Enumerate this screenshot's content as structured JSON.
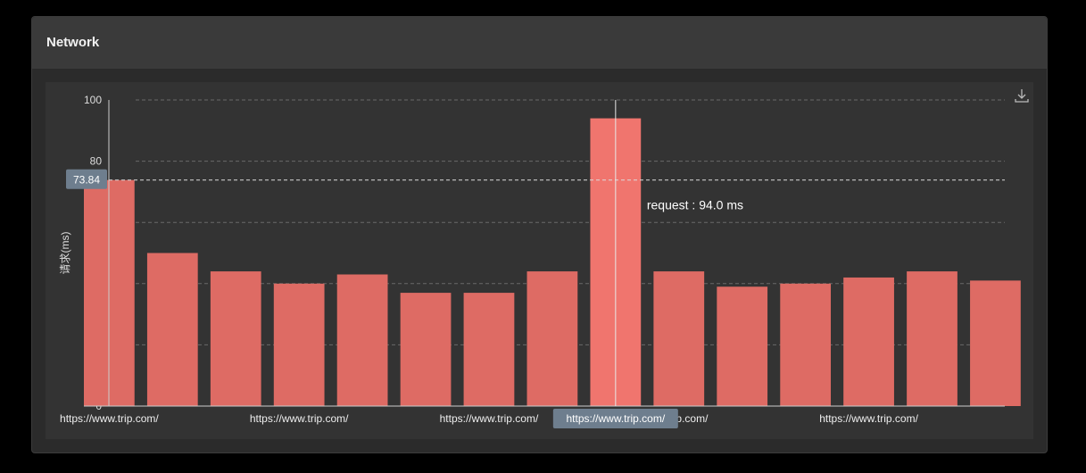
{
  "panel": {
    "title": "Network"
  },
  "chart_data": {
    "type": "bar",
    "categories": [
      "https://www.trip.com/",
      "https://www.trip.com/",
      "https://www.trip.com/",
      "https://www.trip.com/",
      "https://www.trip.com/",
      "https://www.trip.com/",
      "https://www.trip.com/",
      "https://www.trip.com/",
      "https://www.trip.com/",
      "https://www.trip.com/",
      "https://www.trip.com/",
      "https://www.trip.com/",
      "https://www.trip.com/",
      "https://www.trip.com/",
      "https://www.trip.com/"
    ],
    "tick_labels": [
      "https://www.trip.com/",
      "https://www.trip.com/",
      "https://www.trip.com/",
      "https://www.trip.com/",
      "w.trip.com/",
      "https://www.trip.com/"
    ],
    "values": [
      73.84,
      50,
      44,
      40,
      43,
      37,
      37,
      44,
      94.0,
      44,
      39,
      40,
      42,
      44,
      41
    ],
    "ylabel": "请求(ms)",
    "ylim": [
      0,
      100
    ],
    "yticks": [
      0,
      80,
      100
    ],
    "grid": true,
    "bar_color": "#de6b64",
    "highlight_color": "#f0756e",
    "tooltip": {
      "series": "request",
      "value": "94.0",
      "unit": "ms",
      "category_index": 8,
      "category_label": "https://www.trip.com/"
    },
    "axis_pointer": {
      "value": "73.84"
    }
  },
  "toolbox": {
    "icon": "download-icon"
  }
}
